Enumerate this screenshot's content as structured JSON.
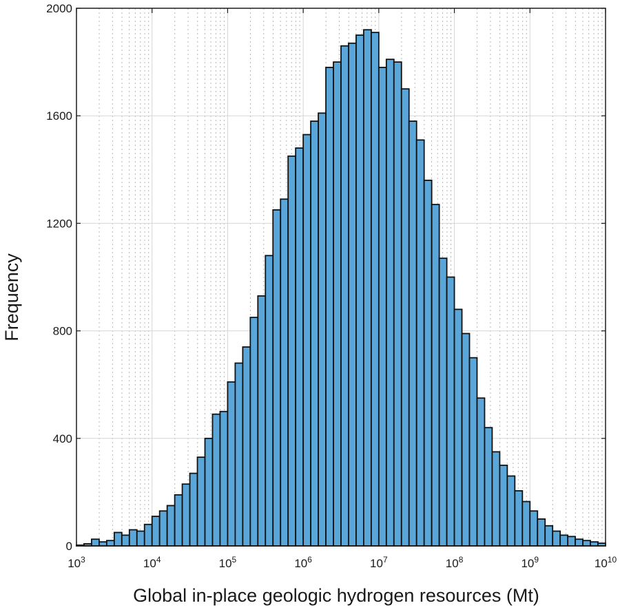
{
  "chart_data": {
    "type": "bar",
    "title": "",
    "xlabel": "Global in-place geologic hydrogen resources (Mt)",
    "ylabel": "Frequency",
    "x_scale": "log10",
    "xlim": [
      1000,
      10000000000
    ],
    "ylim": [
      0,
      2000
    ],
    "grid": true,
    "minor_grid": true,
    "bar_color": "#5aa6d9",
    "bar_edge_color": "#111111",
    "y_ticks": [
      0,
      400,
      800,
      1200,
      1600,
      2000
    ],
    "y_tick_labels": [
      "0",
      "400",
      "800",
      "1200",
      "1600",
      "2000"
    ],
    "x_ticks": [
      1000,
      10000,
      100000,
      1000000,
      10000000,
      100000000,
      1000000000,
      10000000000
    ],
    "x_tick_labels": [
      {
        "base": "10",
        "exp": "3"
      },
      {
        "base": "10",
        "exp": "4"
      },
      {
        "base": "10",
        "exp": "5"
      },
      {
        "base": "10",
        "exp": "6"
      },
      {
        "base": "10",
        "exp": "7"
      },
      {
        "base": "10",
        "exp": "8"
      },
      {
        "base": "10",
        "exp": "9"
      },
      {
        "base": "10",
        "exp": "10"
      }
    ],
    "bins_per_decade": 10,
    "bin_start_log10": 3,
    "values": [
      3,
      8,
      25,
      15,
      20,
      50,
      40,
      60,
      55,
      80,
      110,
      130,
      150,
      190,
      230,
      270,
      330,
      400,
      490,
      500,
      610,
      680,
      740,
      850,
      930,
      1080,
      1250,
      1290,
      1450,
      1480,
      1530,
      1580,
      1610,
      1780,
      1800,
      1860,
      1870,
      1900,
      1920,
      1910,
      1780,
      1810,
      1800,
      1700,
      1580,
      1510,
      1360,
      1270,
      1070,
      1000,
      880,
      790,
      700,
      550,
      440,
      350,
      300,
      260,
      205,
      165,
      130,
      100,
      75,
      55,
      40,
      35,
      25,
      20,
      15,
      10
    ]
  }
}
